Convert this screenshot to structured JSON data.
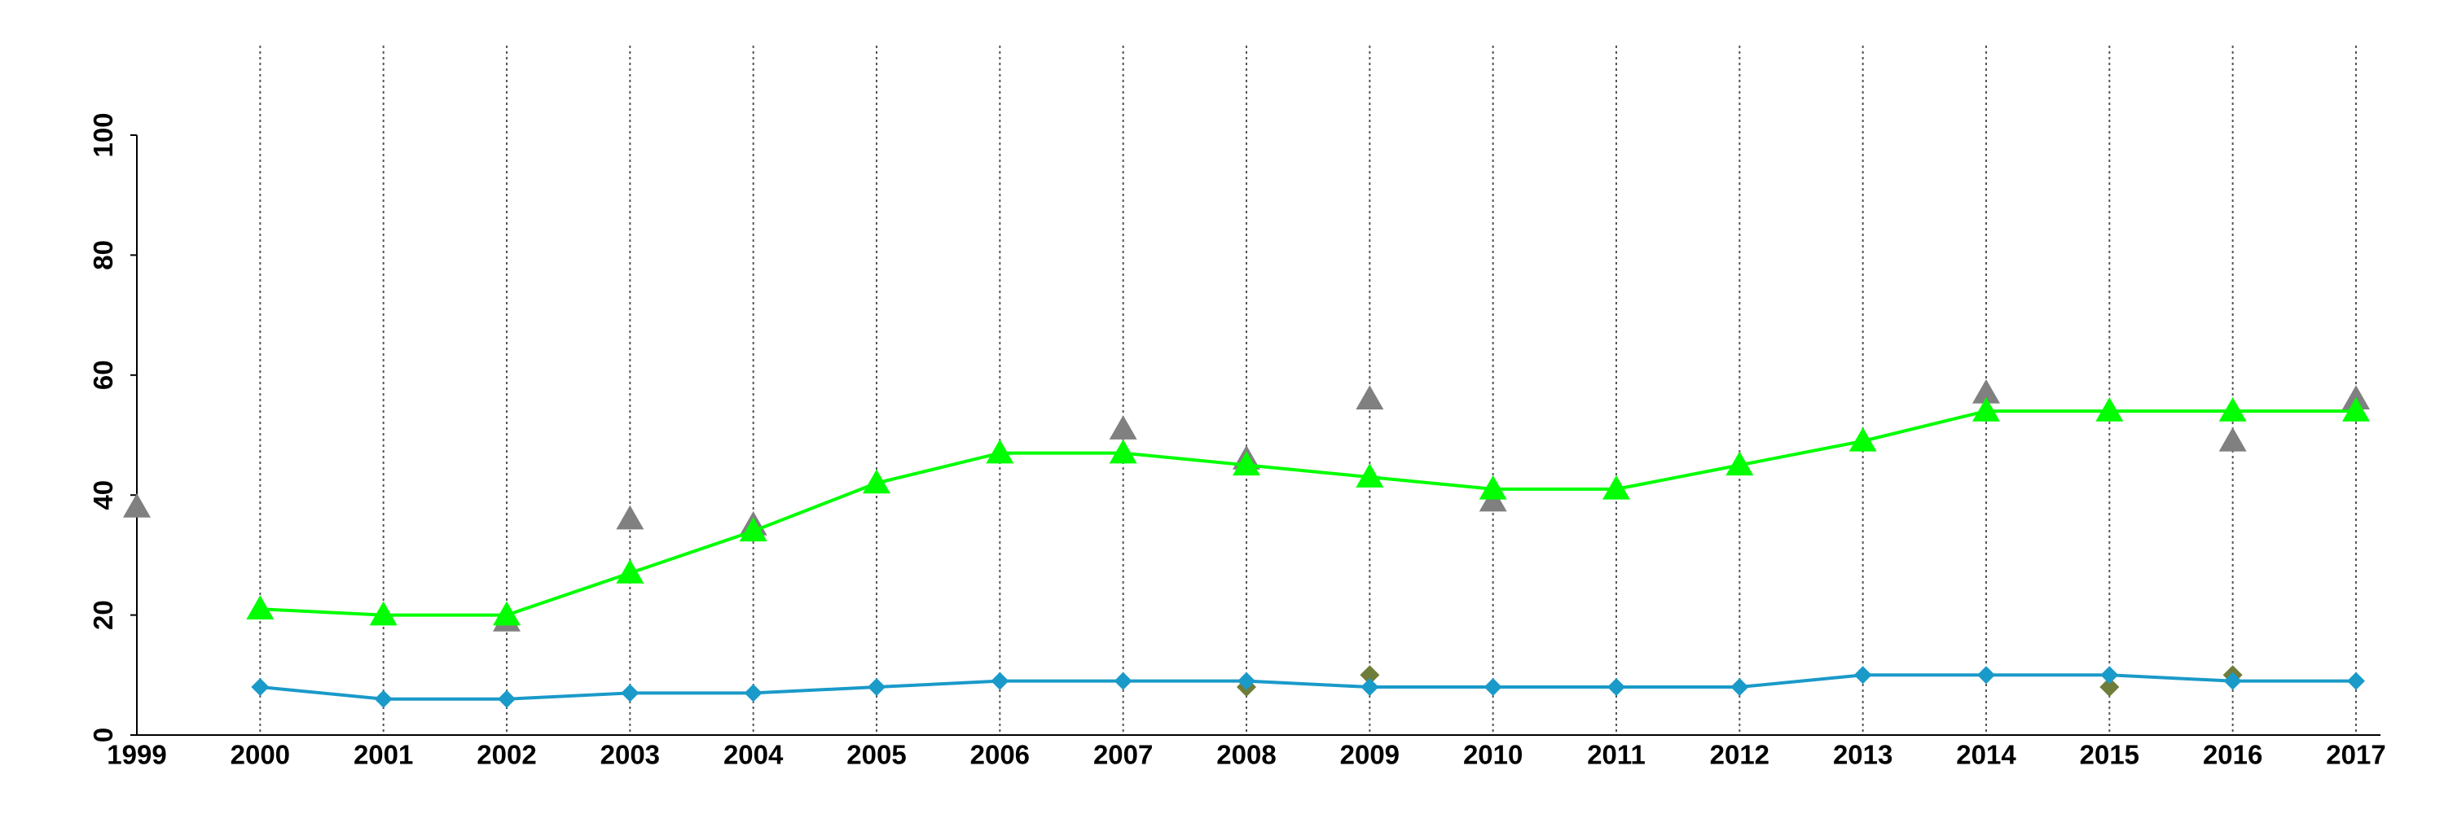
{
  "chart_data": {
    "type": "line",
    "x": [
      1999,
      2000,
      2001,
      2002,
      2003,
      2004,
      2005,
      2006,
      2007,
      2008,
      2009,
      2010,
      2011,
      2012,
      2013,
      2014,
      2015,
      2016,
      2017
    ],
    "xlim": [
      1999,
      2017
    ],
    "xticks": [
      1999,
      2000,
      2001,
      2002,
      2003,
      2004,
      2005,
      2006,
      2007,
      2008,
      2009,
      2010,
      2011,
      2012,
      2013,
      2014,
      2015,
      2016,
      2017
    ],
    "ylim": [
      0,
      100
    ],
    "yticks": [
      0,
      20,
      40,
      60,
      80,
      100
    ],
    "grid": "x",
    "series": [
      {
        "color": "#808080",
        "marker": "triangle",
        "line": false,
        "values": [
          38,
          null,
          null,
          19,
          36,
          35,
          null,
          null,
          51,
          46,
          56,
          39,
          null,
          null,
          null,
          57,
          null,
          49,
          56
        ]
      },
      {
        "color": "#6f7d3a",
        "marker": "diamond",
        "line": false,
        "values": [
          null,
          null,
          null,
          null,
          null,
          null,
          null,
          null,
          null,
          8,
          10,
          null,
          null,
          null,
          null,
          null,
          8,
          10,
          null
        ]
      },
      {
        "color": "#00ff00",
        "marker": "triangle",
        "line": true,
        "values": [
          null,
          21,
          20,
          20,
          27,
          34,
          42,
          47,
          47,
          45,
          43,
          41,
          41,
          45,
          49,
          54,
          54,
          54,
          54
        ]
      },
      {
        "color": "#1a9ac9",
        "marker": "diamond",
        "line": true,
        "values": [
          null,
          8,
          6,
          6,
          7,
          7,
          8,
          9,
          9,
          9,
          8,
          8,
          8,
          8,
          10,
          10,
          10,
          9,
          9
        ]
      }
    ]
  }
}
